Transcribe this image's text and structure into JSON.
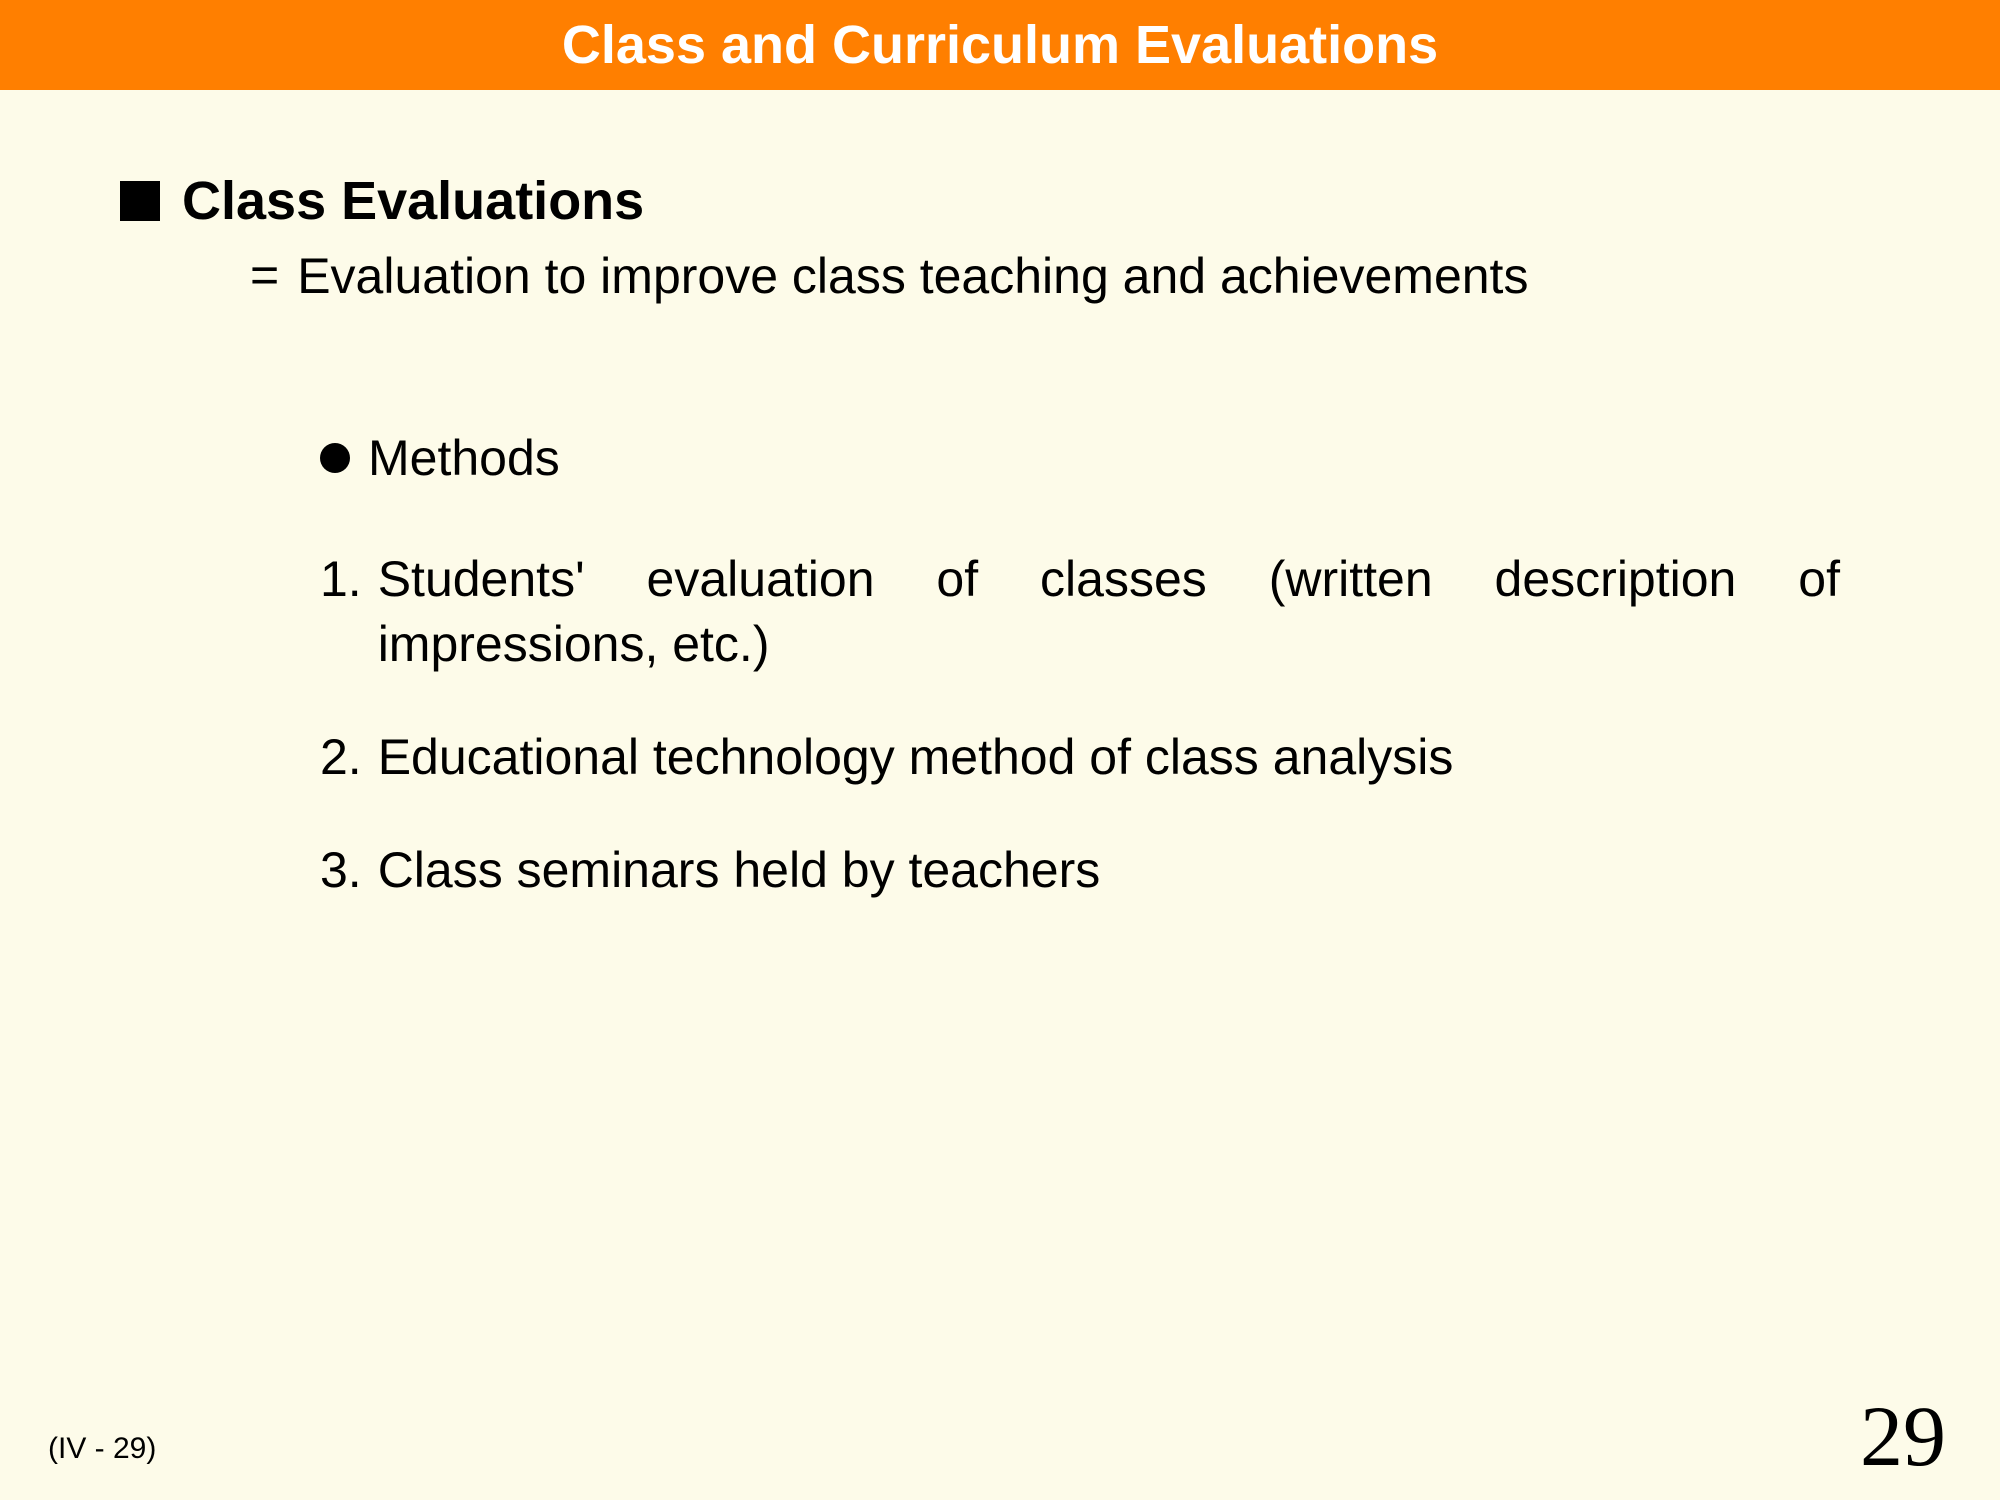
{
  "header": {
    "title": "Class and Curriculum Evaluations",
    "bg_color": "#ff7f00",
    "text_color": "#ffffff"
  },
  "page": {
    "background_color": "#fdfbe9"
  },
  "section": {
    "heading": "Class Evaluations",
    "definition_symbol": "=",
    "definition": "Evaluation to improve class teaching and achievements"
  },
  "methods": {
    "heading": "Methods",
    "items": [
      {
        "num": "1.",
        "text": "Students' evaluation of classes (written description of impressions, etc.)"
      },
      {
        "num": "2.",
        "text": "Educational technology method of class analysis"
      },
      {
        "num": "3.",
        "text": "Class seminars held by teachers"
      }
    ]
  },
  "footer": {
    "ref": "(IV - 29)",
    "page_number": "29"
  }
}
